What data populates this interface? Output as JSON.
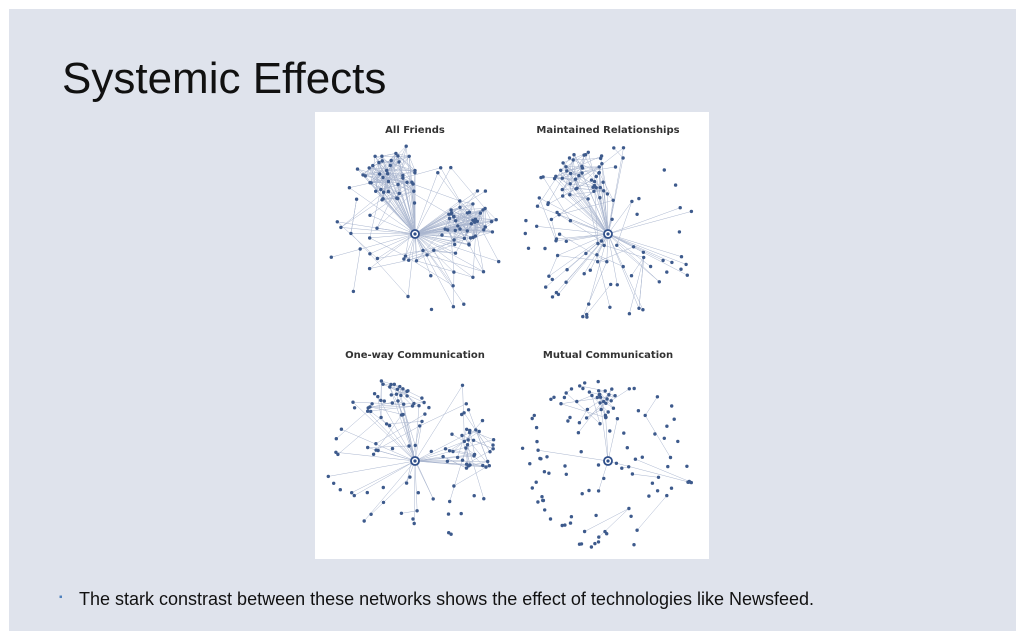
{
  "slide": {
    "title": "Systemic Effects",
    "bullet_mark": "▪",
    "bullet_text": "The stark constrast between these networks shows the effect of technologies like Newsfeed."
  },
  "figure": {
    "panels": [
      {
        "title": "All Friends",
        "edge_density": "dense",
        "clusters": 2
      },
      {
        "title": "Maintained Relationships",
        "edge_density": "medium",
        "clusters": 1
      },
      {
        "title": "One-way Communication",
        "edge_density": "sparse",
        "clusters": 2
      },
      {
        "title": "Mutual Communication",
        "edge_density": "very-sparse",
        "clusters": 1
      }
    ],
    "colors": {
      "node": "#3d5a8c",
      "edge": "#aab6cf",
      "center": "#2f4f8a"
    }
  }
}
